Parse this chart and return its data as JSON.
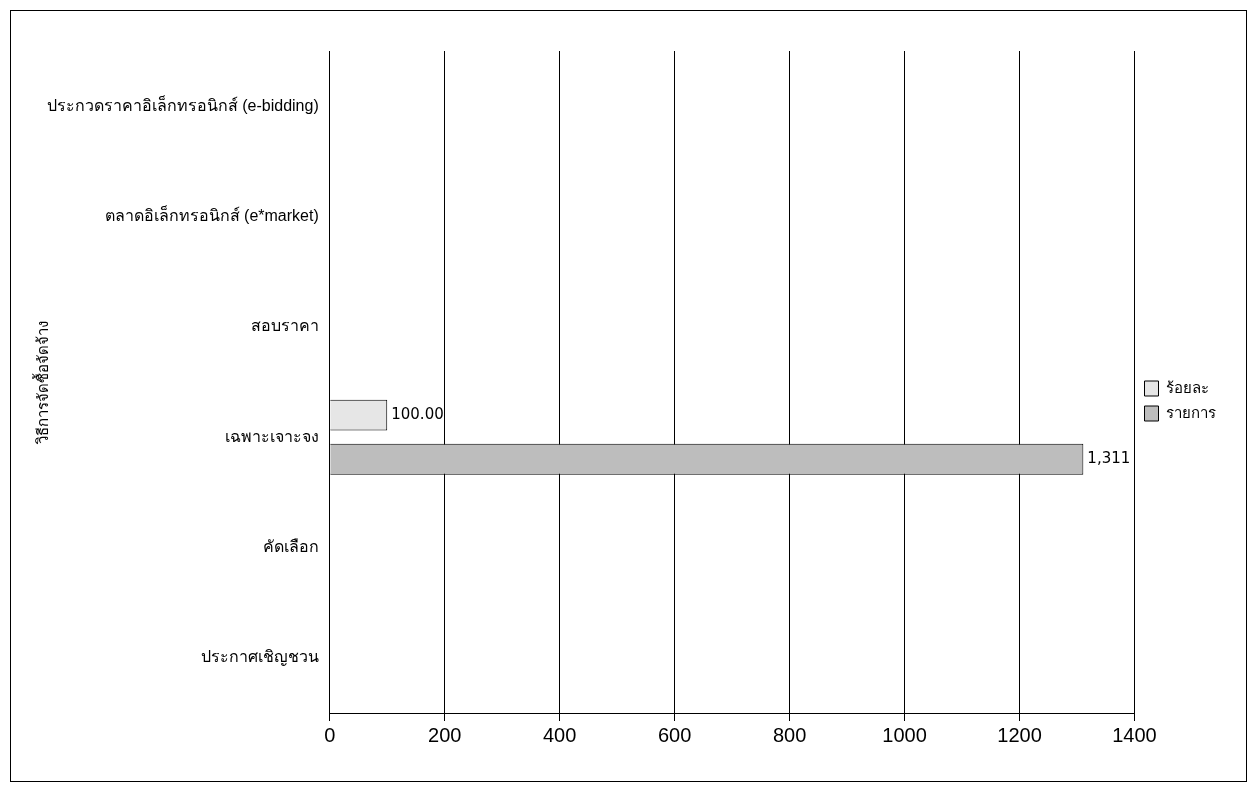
{
  "chart_data": {
    "type": "bar",
    "orientation": "horizontal",
    "ylabel": "วิธีการจัดซื้อจัดจ้าง",
    "categories": [
      "ประกวดราคาอิเล็กทรอนิกส์ (e-bidding)",
      "ตลาดอิเล็กทรอนิกส์ (e*market)",
      "สอบราคา",
      "เฉพาะเจาะจง",
      "คัดเลือก",
      "ประกาศเชิญชวน"
    ],
    "series": [
      {
        "name": "ร้อยละ",
        "color": "#e6e6e6",
        "values": [
          null,
          null,
          null,
          100,
          null,
          null
        ],
        "value_labels": [
          null,
          null,
          null,
          "100.00",
          null,
          null
        ]
      },
      {
        "name": "รายการ",
        "color": "#bdbdbd",
        "values": [
          null,
          null,
          null,
          1311,
          null,
          null
        ],
        "value_labels": [
          null,
          null,
          null,
          "1,311",
          null,
          null
        ]
      }
    ],
    "xlim": [
      0,
      1400
    ],
    "xticks": [
      0,
      200,
      400,
      600,
      800,
      1000,
      1200,
      1400
    ],
    "grid": "x",
    "legend": "right"
  }
}
